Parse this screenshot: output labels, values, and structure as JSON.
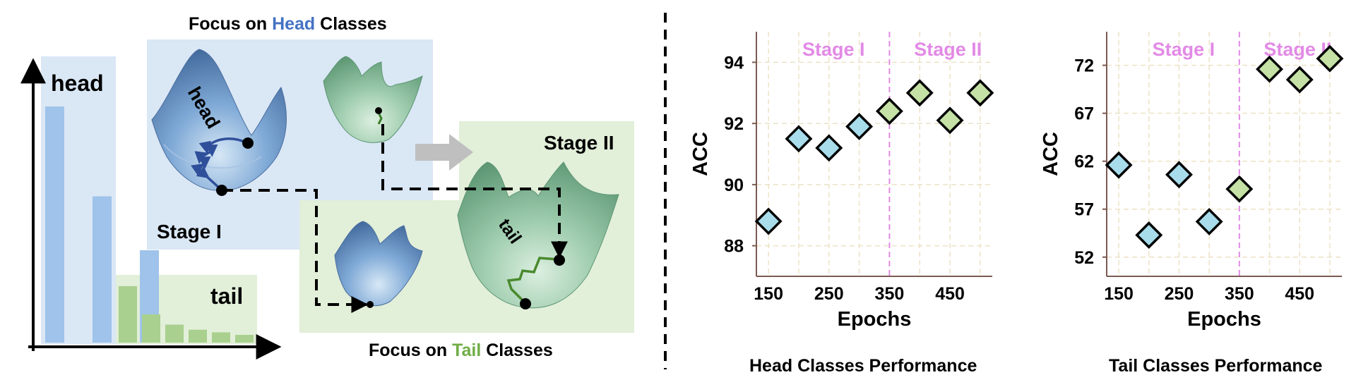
{
  "colors": {
    "head_blue": "#4472c4",
    "tail_green": "#70ad47",
    "stage_label": "#e28ae6",
    "head_marker": "#a8dcea",
    "tail_marker": "#c5e1a5",
    "head_bar": "#9fc3ea",
    "tail_bar": "#a9d08e",
    "head_panel": "#dae7f5",
    "tail_panel": "#e2efd9"
  },
  "diagram": {
    "title_head": {
      "pre": "Focus on ",
      "word": "Head",
      "post": " Classes"
    },
    "title_tail": {
      "pre": "Focus on ",
      "word": "Tail",
      "post": " Classes"
    },
    "label_head": "head",
    "label_tail": "tail",
    "stage1": "Stage I",
    "stage2": "Stage II",
    "surface_head_word": "head",
    "surface_tail_word": "tail",
    "head_bars": [
      0.92,
      0.57,
      0.36
    ],
    "tail_bars": [
      0.22,
      0.11,
      0.07,
      0.05,
      0.04,
      0.03
    ]
  },
  "chart_data": [
    {
      "type": "scatter",
      "title": "Head Classes Performance",
      "xlabel": "Epochs",
      "ylabel": "ACC",
      "xlim": [
        130,
        520
      ],
      "ylim": [
        87,
        95
      ],
      "xticks": [
        150,
        250,
        350,
        450
      ],
      "yticks": [
        88,
        90,
        92,
        94
      ],
      "stage_split": 350,
      "stage_labels": [
        "Stage I",
        "Stage II"
      ],
      "grid": true,
      "series": [
        {
          "x": [
            150,
            200,
            250,
            300
          ],
          "y": [
            88.8,
            91.5,
            91.2,
            91.9
          ],
          "stage": "Stage I"
        },
        {
          "x": [
            350,
            400,
            450,
            500
          ],
          "y": [
            92.4,
            93.0,
            92.1,
            93.0
          ],
          "stage": "Stage II"
        }
      ]
    },
    {
      "type": "scatter",
      "title": "Tail Classes Performance",
      "xlabel": "Epochs",
      "ylabel": "ACC",
      "xlim": [
        130,
        520
      ],
      "ylim": [
        50,
        75.5
      ],
      "xticks": [
        150,
        250,
        350,
        450
      ],
      "yticks": [
        52,
        57,
        62,
        67,
        72
      ],
      "stage_split": 350,
      "stage_labels": [
        "Stage I",
        "Stage II"
      ],
      "grid": true,
      "series": [
        {
          "x": [
            150,
            200,
            250,
            300
          ],
          "y": [
            61.6,
            54.3,
            60.6,
            55.7
          ],
          "stage": "Stage I"
        },
        {
          "x": [
            350,
            400,
            450,
            500
          ],
          "y": [
            59.1,
            71.6,
            70.5,
            72.7
          ],
          "stage": "Stage II"
        }
      ]
    }
  ]
}
